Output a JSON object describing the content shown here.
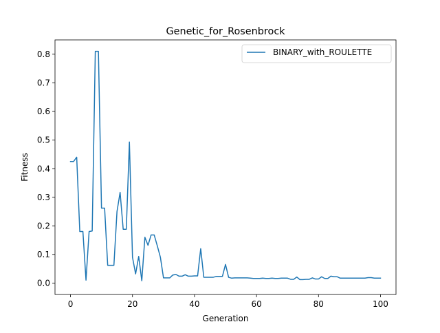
{
  "chart_data": {
    "type": "line",
    "title": "Genetic_for_Rosenbrock",
    "xlabel": "Generation",
    "ylabel": "Fitness",
    "xlim": [
      -5,
      105
    ],
    "ylim": [
      -0.04,
      0.85
    ],
    "xticks": [
      0,
      20,
      40,
      60,
      80,
      100
    ],
    "yticks": [
      0.0,
      0.1,
      0.2,
      0.3,
      0.4,
      0.5,
      0.6,
      0.7,
      0.8
    ],
    "grid": false,
    "legend_position": "top-right",
    "series": [
      {
        "name": "BINARY_with_ROULETTE",
        "color": "#1f77b4",
        "x": [
          0,
          1,
          2,
          3,
          4,
          5,
          6,
          7,
          8,
          9,
          10,
          11,
          12,
          13,
          14,
          15,
          16,
          17,
          18,
          19,
          20,
          21,
          22,
          23,
          24,
          25,
          26,
          27,
          28,
          29,
          30,
          31,
          32,
          33,
          34,
          35,
          36,
          37,
          38,
          39,
          40,
          41,
          42,
          43,
          44,
          45,
          46,
          47,
          48,
          49,
          50,
          51,
          52,
          53,
          54,
          55,
          56,
          57,
          58,
          59,
          60,
          61,
          62,
          63,
          64,
          65,
          66,
          67,
          68,
          69,
          70,
          71,
          72,
          73,
          74,
          75,
          76,
          77,
          78,
          79,
          80,
          81,
          82,
          83,
          84,
          85,
          86,
          87,
          88,
          89,
          90,
          91,
          92,
          93,
          94,
          95,
          96,
          97,
          98,
          99,
          100
        ],
        "y": [
          0.425,
          0.425,
          0.44,
          0.18,
          0.18,
          0.01,
          0.18,
          0.182,
          0.81,
          0.81,
          0.262,
          0.262,
          0.062,
          0.062,
          0.062,
          0.25,
          0.317,
          0.188,
          0.188,
          0.493,
          0.09,
          0.032,
          0.093,
          0.008,
          0.16,
          0.132,
          0.168,
          0.168,
          0.13,
          0.09,
          0.018,
          0.018,
          0.018,
          0.028,
          0.03,
          0.024,
          0.024,
          0.029,
          0.024,
          0.024,
          0.025,
          0.025,
          0.12,
          0.02,
          0.02,
          0.02,
          0.02,
          0.023,
          0.023,
          0.023,
          0.065,
          0.02,
          0.017,
          0.018,
          0.018,
          0.018,
          0.018,
          0.018,
          0.017,
          0.016,
          0.016,
          0.016,
          0.017,
          0.016,
          0.016,
          0.017,
          0.016,
          0.016,
          0.017,
          0.017,
          0.017,
          0.013,
          0.013,
          0.021,
          0.012,
          0.012,
          0.013,
          0.013,
          0.018,
          0.014,
          0.014,
          0.022,
          0.016,
          0.016,
          0.024,
          0.022,
          0.022,
          0.017,
          0.017,
          0.017,
          0.017,
          0.017,
          0.017,
          0.017,
          0.017,
          0.017,
          0.019,
          0.019,
          0.017,
          0.017,
          0.017
        ]
      }
    ]
  }
}
